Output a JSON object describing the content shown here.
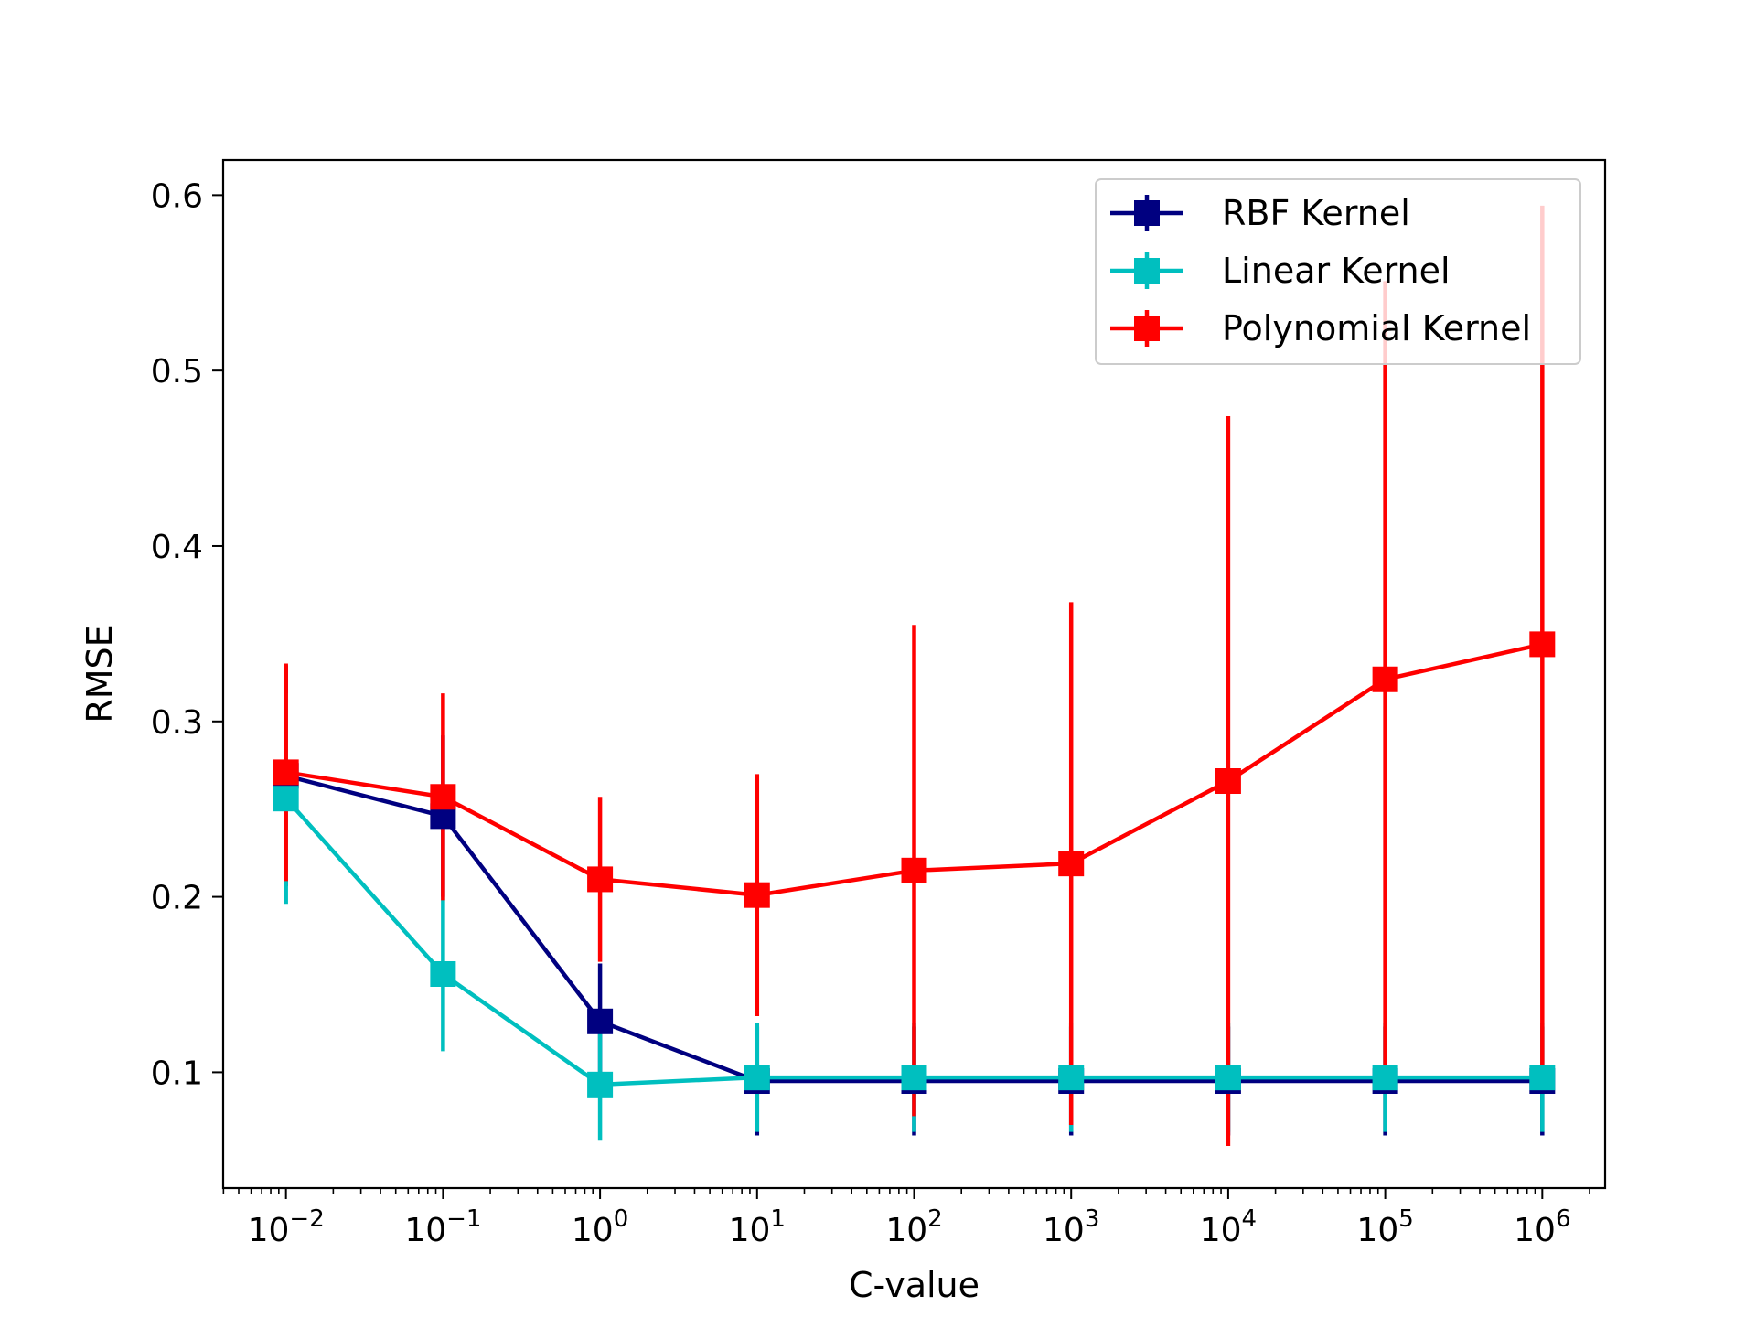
{
  "chart_data": {
    "type": "line",
    "title": "",
    "xlabel": "C-value",
    "ylabel": "RMSE",
    "x_scale": "log",
    "x": [
      0.01,
      0.1,
      1,
      10,
      100,
      1000,
      10000,
      100000,
      1000000
    ],
    "x_tick_labels": [
      {
        "base": "10",
        "exp": "−2"
      },
      {
        "base": "10",
        "exp": "−1"
      },
      {
        "base": "10",
        "exp": "0"
      },
      {
        "base": "10",
        "exp": "1"
      },
      {
        "base": "10",
        "exp": "2"
      },
      {
        "base": "10",
        "exp": "3"
      },
      {
        "base": "10",
        "exp": "4"
      },
      {
        "base": "10",
        "exp": "5"
      },
      {
        "base": "10",
        "exp": "6"
      }
    ],
    "y_ticks": [
      0.1,
      0.2,
      0.3,
      0.4,
      0.5,
      0.6
    ],
    "y_tick_labels": [
      "0.1",
      "0.2",
      "0.3",
      "0.4",
      "0.5",
      "0.6"
    ],
    "ylim": [
      0.034,
      0.62
    ],
    "xlim_exp": [
      -2.4,
      6.4
    ],
    "grid": false,
    "legend_position": "top-right",
    "series": [
      {
        "name": "RBF Kernel",
        "color": "#000080",
        "values": [
          0.269,
          0.246,
          0.129,
          0.095,
          0.095,
          0.095,
          0.095,
          0.095,
          0.095
        ],
        "errors": [
          0.063,
          0.046,
          0.033,
          0.031,
          0.031,
          0.031,
          0.031,
          0.031,
          0.031
        ]
      },
      {
        "name": "Linear Kernel",
        "color": "#00bfbf",
        "values": [
          0.256,
          0.156,
          0.093,
          0.097,
          0.097,
          0.097,
          0.097,
          0.097,
          0.097
        ],
        "errors": [
          0.06,
          0.044,
          0.032,
          0.031,
          0.031,
          0.031,
          0.031,
          0.031,
          0.031
        ]
      },
      {
        "name": "Polynomial Kernel",
        "color": "#ff0000",
        "values": [
          0.271,
          0.257,
          0.21,
          0.201,
          0.215,
          0.219,
          0.266,
          0.324,
          0.344
        ],
        "errors": [
          0.062,
          0.059,
          0.047,
          0.069,
          0.14,
          0.149,
          0.208,
          0.227,
          0.25
        ]
      }
    ]
  }
}
